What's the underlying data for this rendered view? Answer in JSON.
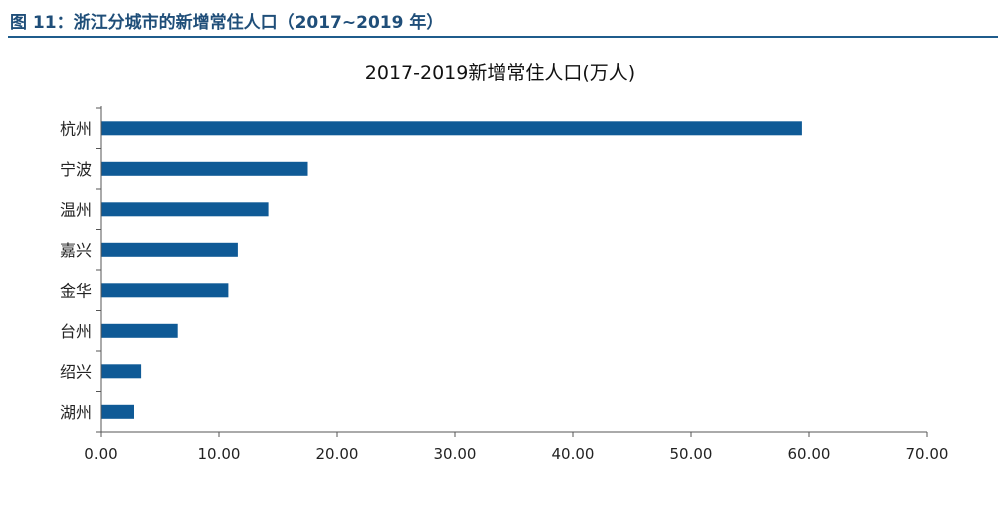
{
  "figure": {
    "header": "图 11：浙江分城市的新增常住人口（2017~2019 年）"
  },
  "colors": {
    "bar": "#0f5a96",
    "header": "#1f4e79",
    "rule": "#1f5c8c"
  },
  "chart_data": {
    "type": "bar",
    "orientation": "horizontal",
    "title": "2017-2019新增常住人口(万人)",
    "categories": [
      "杭州",
      "宁波",
      "温州",
      "嘉兴",
      "金华",
      "台州",
      "绍兴",
      "湖州"
    ],
    "values": [
      59.4,
      17.5,
      14.2,
      11.6,
      10.8,
      6.5,
      3.4,
      2.8
    ],
    "xlim": [
      0,
      70
    ],
    "xticks": [
      "0.00",
      "10.00",
      "20.00",
      "30.00",
      "40.00",
      "50.00",
      "60.00",
      "70.00"
    ],
    "xlabel": "",
    "ylabel": "",
    "grid": false,
    "legend": "none"
  }
}
